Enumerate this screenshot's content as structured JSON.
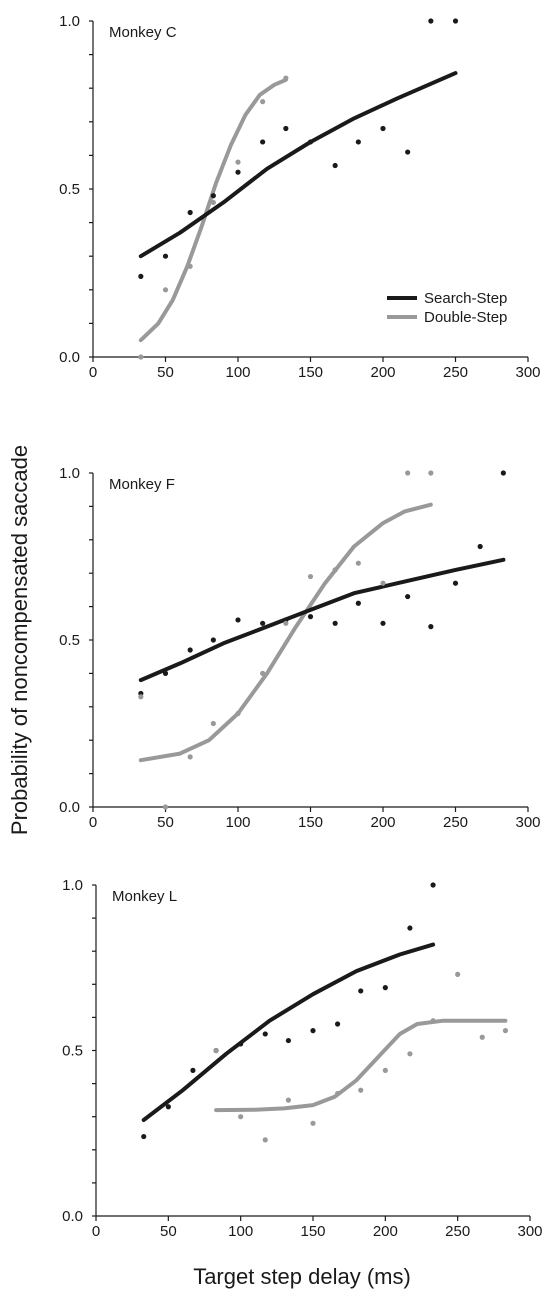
{
  "ylabel": "Probability of noncompensated saccade",
  "xlabel": "Target step delay (ms)",
  "legend": {
    "placement": "inside-right (top panel)",
    "entries": [
      {
        "label": "Search-Step",
        "color": "#1a1a1a"
      },
      {
        "label": "Double-Step",
        "color": "#999999"
      }
    ]
  },
  "colors": {
    "search_step": "#1a1a1a",
    "double_step": "#999999"
  },
  "chart_data": [
    {
      "type": "scatter",
      "title": "Monkey C",
      "xlim": [
        0,
        300
      ],
      "ylim": [
        0,
        1
      ],
      "x_ticks": [
        "0",
        "50",
        "100",
        "150",
        "200",
        "250",
        "300"
      ],
      "y_ticks": [
        "0.0",
        "0.5",
        "1.0"
      ],
      "series": [
        {
          "name": "Search-Step",
          "points": [
            [
              33,
              0.24
            ],
            [
              50,
              0.3
            ],
            [
              67,
              0.43
            ],
            [
              83,
              0.48
            ],
            [
              100,
              0.55
            ],
            [
              117,
              0.64
            ],
            [
              133,
              0.68
            ],
            [
              150,
              0.64
            ],
            [
              167,
              0.57
            ],
            [
              183,
              0.64
            ],
            [
              200,
              0.68
            ],
            [
              217,
              0.61
            ],
            [
              233,
              1.0
            ],
            [
              250,
              1.0
            ]
          ],
          "fit": [
            [
              33,
              0.3
            ],
            [
              60,
              0.37
            ],
            [
              90,
              0.46
            ],
            [
              120,
              0.56
            ],
            [
              150,
              0.64
            ],
            [
              180,
              0.71
            ],
            [
              210,
              0.77
            ],
            [
              250,
              0.845
            ]
          ]
        },
        {
          "name": "Double-Step",
          "points": [
            [
              33,
              0.0
            ],
            [
              50,
              0.2
            ],
            [
              67,
              0.27
            ],
            [
              83,
              0.46
            ],
            [
              100,
              0.58
            ],
            [
              117,
              0.76
            ],
            [
              133,
              0.83
            ]
          ],
          "fit": [
            [
              33,
              0.05
            ],
            [
              45,
              0.1
            ],
            [
              55,
              0.17
            ],
            [
              65,
              0.27
            ],
            [
              75,
              0.39
            ],
            [
              85,
              0.52
            ],
            [
              95,
              0.63
            ],
            [
              105,
              0.72
            ],
            [
              115,
              0.78
            ],
            [
              125,
              0.81
            ],
            [
              133,
              0.825
            ]
          ]
        }
      ]
    },
    {
      "type": "scatter",
      "title": "Monkey F",
      "xlim": [
        0,
        300
      ],
      "ylim": [
        0,
        1
      ],
      "x_ticks": [
        "0",
        "50",
        "100",
        "150",
        "200",
        "250",
        "300"
      ],
      "y_ticks": [
        "0.0",
        "0.5",
        "1.0"
      ],
      "series": [
        {
          "name": "Search-Step",
          "points": [
            [
              33,
              0.34
            ],
            [
              50,
              0.4
            ],
            [
              67,
              0.47
            ],
            [
              83,
              0.5
            ],
            [
              100,
              0.56
            ],
            [
              117,
              0.55
            ],
            [
              133,
              0.56
            ],
            [
              150,
              0.57
            ],
            [
              167,
              0.55
            ],
            [
              183,
              0.61
            ],
            [
              200,
              0.55
            ],
            [
              217,
              0.63
            ],
            [
              233,
              0.54
            ],
            [
              250,
              0.67
            ],
            [
              267,
              0.78
            ],
            [
              283,
              1.0
            ]
          ],
          "fit": [
            [
              33,
              0.38
            ],
            [
              60,
              0.43
            ],
            [
              90,
              0.49
            ],
            [
              120,
              0.54
            ],
            [
              150,
              0.59
            ],
            [
              180,
              0.64
            ],
            [
              210,
              0.67
            ],
            [
              250,
              0.71
            ],
            [
              283,
              0.74
            ]
          ]
        },
        {
          "name": "Double-Step",
          "points": [
            [
              33,
              0.33
            ],
            [
              50,
              0.0
            ],
            [
              67,
              0.15
            ],
            [
              83,
              0.25
            ],
            [
              100,
              0.28
            ],
            [
              117,
              0.4
            ],
            [
              133,
              0.55
            ],
            [
              150,
              0.69
            ],
            [
              167,
              0.71
            ],
            [
              183,
              0.73
            ],
            [
              200,
              0.67
            ],
            [
              217,
              1.0
            ],
            [
              233,
              1.0
            ]
          ],
          "fit": [
            [
              33,
              0.14
            ],
            [
              60,
              0.16
            ],
            [
              80,
              0.2
            ],
            [
              100,
              0.28
            ],
            [
              120,
              0.4
            ],
            [
              140,
              0.54
            ],
            [
              160,
              0.67
            ],
            [
              180,
              0.78
            ],
            [
              200,
              0.85
            ],
            [
              215,
              0.885
            ],
            [
              233,
              0.905
            ]
          ]
        }
      ]
    },
    {
      "type": "scatter",
      "title": "Monkey L",
      "xlim": [
        0,
        300
      ],
      "ylim": [
        0,
        1
      ],
      "x_ticks": [
        "0",
        "50",
        "100",
        "150",
        "200",
        "250",
        "300"
      ],
      "y_ticks": [
        "0.0",
        "0.5",
        "1.0"
      ],
      "series": [
        {
          "name": "Search-Step",
          "points": [
            [
              33,
              0.24
            ],
            [
              50,
              0.33
            ],
            [
              67,
              0.44
            ],
            [
              83,
              0.5
            ],
            [
              100,
              0.52
            ],
            [
              117,
              0.55
            ],
            [
              133,
              0.53
            ],
            [
              150,
              0.56
            ],
            [
              167,
              0.58
            ],
            [
              183,
              0.68
            ],
            [
              200,
              0.69
            ],
            [
              217,
              0.87
            ],
            [
              233,
              1.0
            ]
          ],
          "fit": [
            [
              33,
              0.29
            ],
            [
              60,
              0.38
            ],
            [
              90,
              0.49
            ],
            [
              120,
              0.59
            ],
            [
              150,
              0.67
            ],
            [
              180,
              0.74
            ],
            [
              210,
              0.79
            ],
            [
              233,
              0.82
            ]
          ]
        },
        {
          "name": "Double-Step",
          "points": [
            [
              83,
              0.5
            ],
            [
              100,
              0.3
            ],
            [
              117,
              0.23
            ],
            [
              133,
              0.35
            ],
            [
              150,
              0.28
            ],
            [
              167,
              0.37
            ],
            [
              183,
              0.38
            ],
            [
              200,
              0.44
            ],
            [
              217,
              0.49
            ],
            [
              233,
              0.59
            ],
            [
              250,
              0.73
            ],
            [
              267,
              0.54
            ],
            [
              283,
              0.56
            ]
          ],
          "fit": [
            [
              83,
              0.32
            ],
            [
              110,
              0.321
            ],
            [
              130,
              0.325
            ],
            [
              150,
              0.335
            ],
            [
              165,
              0.36
            ],
            [
              180,
              0.41
            ],
            [
              195,
              0.48
            ],
            [
              210,
              0.55
            ],
            [
              222,
              0.58
            ],
            [
              240,
              0.59
            ],
            [
              283,
              0.59
            ]
          ]
        }
      ]
    }
  ]
}
